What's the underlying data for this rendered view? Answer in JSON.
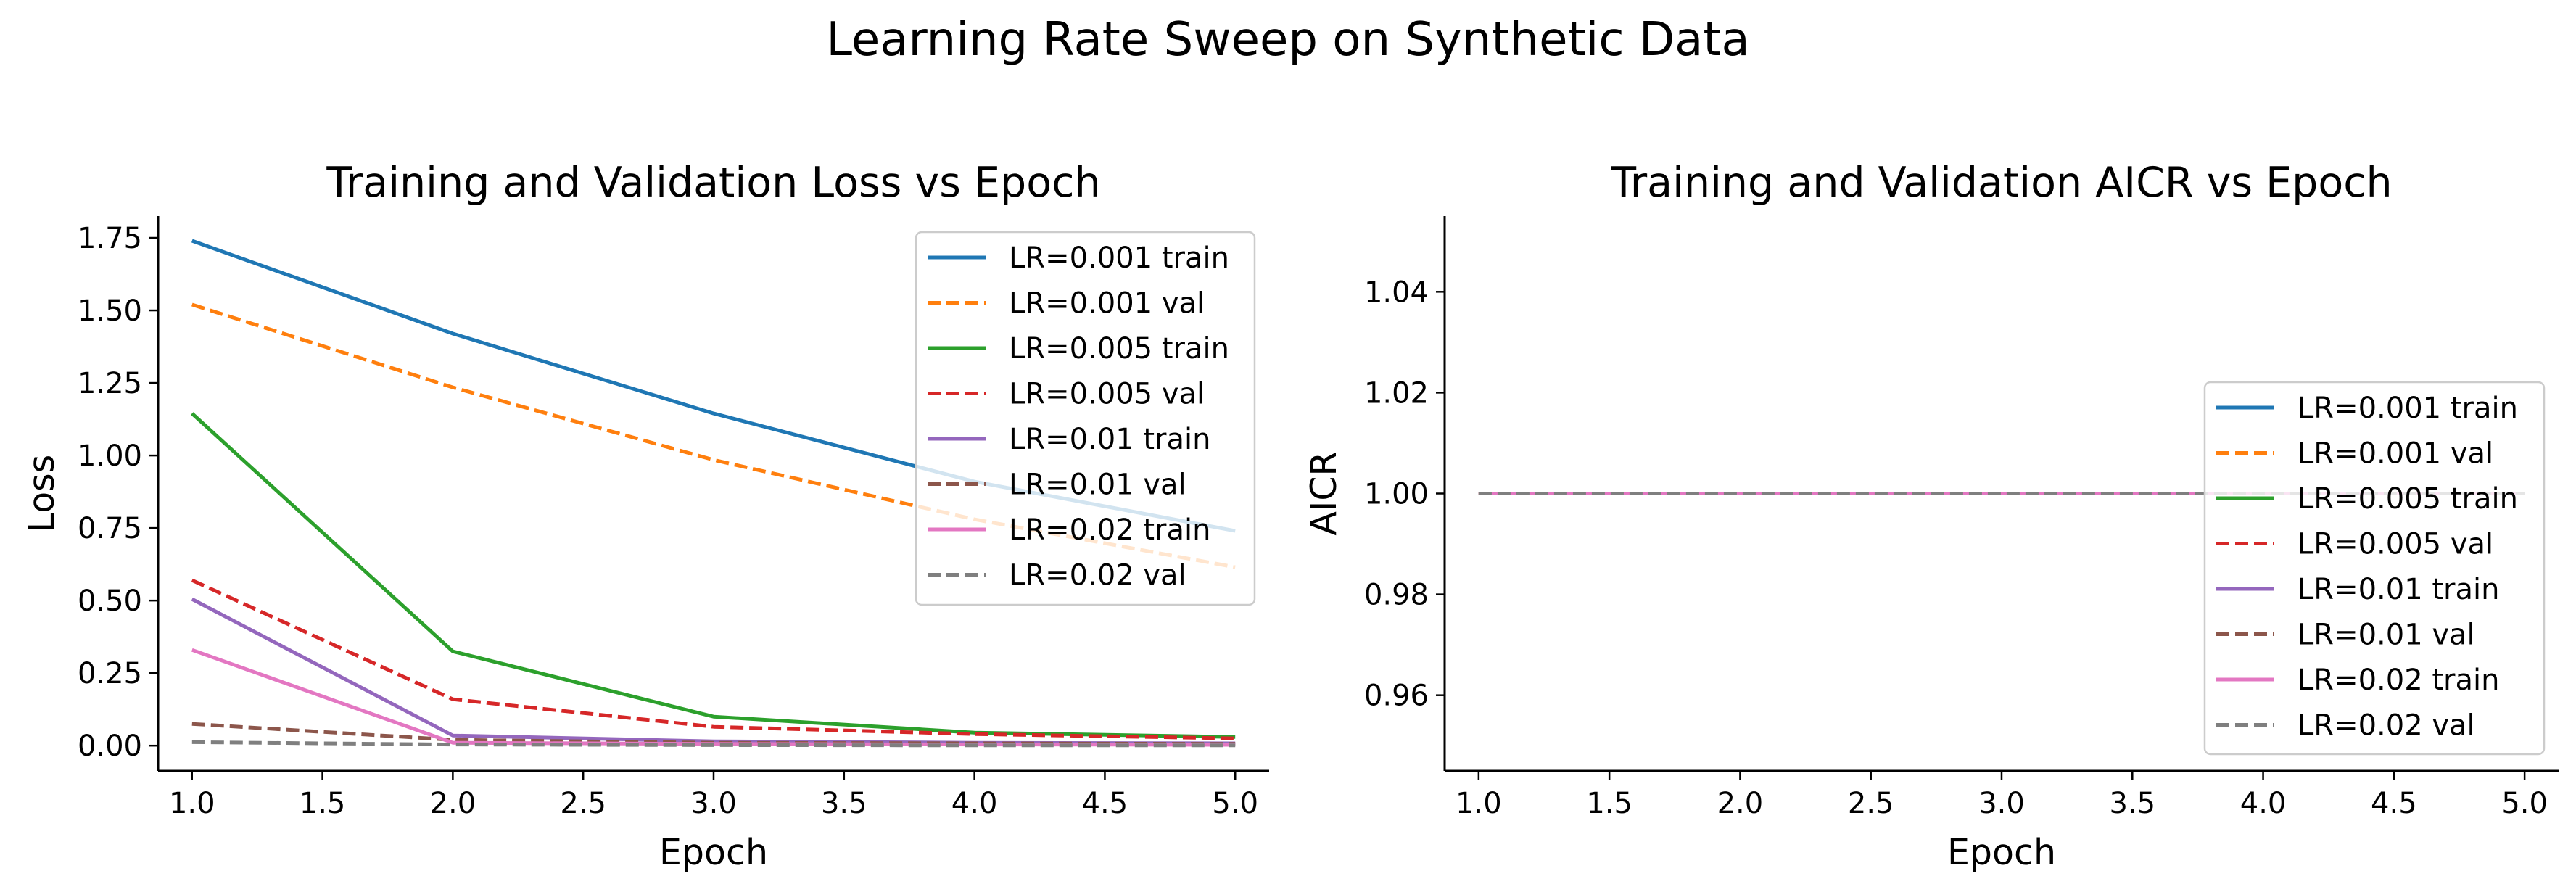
{
  "figure_title": "Learning Rate Sweep on Synthetic Data",
  "colors": {
    "LR=0.001": "#1f77b4",
    "LR=0.001 val": "#ff7f0e",
    "LR=0.005": "#2ca02c",
    "LR=0.005 val": "#d62728",
    "LR=0.01": "#9467bd",
    "LR=0.01 val": "#8c564b",
    "LR=0.02": "#e377c2",
    "LR=0.02 val": "#7f7f7f"
  },
  "chart_data": [
    {
      "type": "line",
      "title": "Training and Validation Loss vs Epoch",
      "xlabel": "Epoch",
      "ylabel": "Loss",
      "xlim": [
        0.87,
        5.13
      ],
      "ylim": [
        -0.087,
        1.825
      ],
      "xticks": [
        "1.0",
        "1.5",
        "2.0",
        "2.5",
        "3.0",
        "3.5",
        "4.0",
        "4.5",
        "5.0"
      ],
      "yticks": [
        "0.00",
        "0.25",
        "0.50",
        "0.75",
        "1.00",
        "1.25",
        "1.50",
        "1.75"
      ],
      "grid": false,
      "legend_position": "upper right",
      "x": [
        1,
        2,
        3,
        4,
        5
      ],
      "series": [
        {
          "name": "LR=0.001 train",
          "style": "solid",
          "color": "#1f77b4",
          "values": [
            1.74,
            1.42,
            1.145,
            0.91,
            0.74
          ]
        },
        {
          "name": "LR=0.001 val",
          "style": "dashed",
          "color": "#ff7f0e",
          "values": [
            1.52,
            1.235,
            0.985,
            0.78,
            0.615
          ]
        },
        {
          "name": "LR=0.005 train",
          "style": "solid",
          "color": "#2ca02c",
          "values": [
            1.145,
            0.325,
            0.1,
            0.045,
            0.03
          ]
        },
        {
          "name": "LR=0.005 val",
          "style": "dashed",
          "color": "#d62728",
          "values": [
            0.57,
            0.16,
            0.065,
            0.04,
            0.025
          ]
        },
        {
          "name": "LR=0.01 train",
          "style": "solid",
          "color": "#9467bd",
          "values": [
            0.505,
            0.035,
            0.015,
            0.01,
            0.008
          ]
        },
        {
          "name": "LR=0.01 val",
          "style": "dashed",
          "color": "#8c564b",
          "values": [
            0.075,
            0.02,
            0.01,
            0.008,
            0.006
          ]
        },
        {
          "name": "LR=0.02 train",
          "style": "solid",
          "color": "#e377c2",
          "values": [
            0.33,
            0.01,
            0.006,
            0.004,
            0.003
          ]
        },
        {
          "name": "LR=0.02 val",
          "style": "dashed",
          "color": "#7f7f7f",
          "values": [
            0.012,
            0.004,
            0.002,
            0.001,
            0.001
          ]
        }
      ]
    },
    {
      "type": "line",
      "title": "Training and Validation AICR vs Epoch",
      "xlabel": "Epoch",
      "ylabel": "AICR",
      "xlim": [
        0.87,
        5.13
      ],
      "ylim": [
        0.945,
        1.055
      ],
      "xticks": [
        "1.0",
        "1.5",
        "2.0",
        "2.5",
        "3.0",
        "3.5",
        "4.0",
        "4.5",
        "5.0"
      ],
      "yticks": [
        "0.96",
        "0.98",
        "1.00",
        "1.02",
        "1.04"
      ],
      "grid": false,
      "legend_position": "center right",
      "x": [
        1,
        2,
        3,
        4,
        5
      ],
      "series": [
        {
          "name": "LR=0.001 train",
          "style": "solid",
          "color": "#1f77b4",
          "values": [
            1.0,
            1.0,
            1.0,
            1.0,
            1.0
          ]
        },
        {
          "name": "LR=0.001 val",
          "style": "dashed",
          "color": "#ff7f0e",
          "values": [
            1.0,
            1.0,
            1.0,
            1.0,
            1.0
          ]
        },
        {
          "name": "LR=0.005 train",
          "style": "solid",
          "color": "#2ca02c",
          "values": [
            1.0,
            1.0,
            1.0,
            1.0,
            1.0
          ]
        },
        {
          "name": "LR=0.005 val",
          "style": "dashed",
          "color": "#d62728",
          "values": [
            1.0,
            1.0,
            1.0,
            1.0,
            1.0
          ]
        },
        {
          "name": "LR=0.01 train",
          "style": "solid",
          "color": "#9467bd",
          "values": [
            1.0,
            1.0,
            1.0,
            1.0,
            1.0
          ]
        },
        {
          "name": "LR=0.01 val",
          "style": "dashed",
          "color": "#8c564b",
          "values": [
            1.0,
            1.0,
            1.0,
            1.0,
            1.0
          ]
        },
        {
          "name": "LR=0.02 train",
          "style": "solid",
          "color": "#e377c2",
          "values": [
            1.0,
            1.0,
            1.0,
            1.0,
            1.0
          ]
        },
        {
          "name": "LR=0.02 val",
          "style": "dashed",
          "color": "#7f7f7f",
          "values": [
            1.0,
            1.0,
            1.0,
            1.0,
            1.0
          ]
        }
      ]
    }
  ]
}
